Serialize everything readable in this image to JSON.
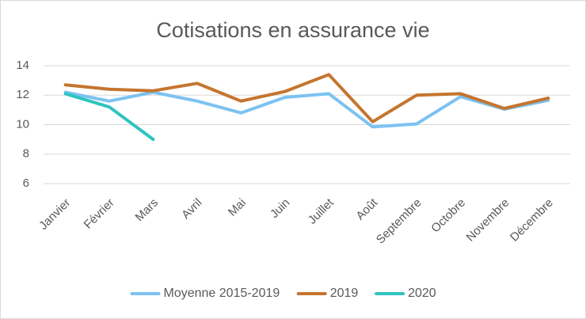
{
  "chart_data": {
    "type": "line",
    "title": "Cotisations en assurance vie",
    "categories": [
      "Janvier",
      "Février",
      "Mars",
      "Avril",
      "Mai",
      "Juin",
      "Juillet",
      "Août",
      "Septembre",
      "Octobre",
      "Novembre",
      "Décembre"
    ],
    "series": [
      {
        "name": "Moyenne 2015-2019",
        "color": "#7cc2f1",
        "values": [
          12.2,
          11.6,
          12.2,
          11.6,
          10.8,
          11.85,
          12.1,
          9.85,
          10.05,
          11.9,
          11.05,
          11.65
        ]
      },
      {
        "name": "2019",
        "color": "#c5752f",
        "values": [
          12.7,
          12.4,
          12.3,
          12.8,
          11.6,
          12.25,
          13.4,
          10.2,
          12.0,
          12.1,
          11.1,
          11.8
        ]
      },
      {
        "name": "2020",
        "color": "#2fc4bf",
        "values": [
          12.1,
          11.2,
          9.0,
          null,
          null,
          null,
          null,
          null,
          null,
          null,
          null,
          null
        ]
      }
    ],
    "ylim": [
      6,
      14
    ],
    "yticks": [
      6,
      8,
      10,
      12,
      14
    ],
    "grid": true,
    "legend": "bottom"
  }
}
